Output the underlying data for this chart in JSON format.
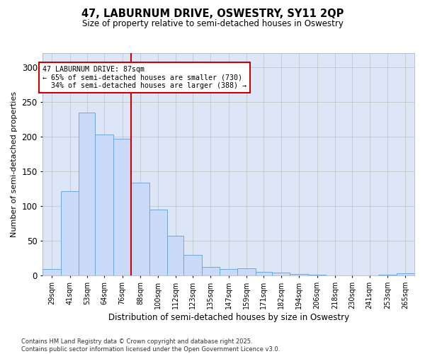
{
  "title": "47, LABURNUM DRIVE, OSWESTRY, SY11 2QP",
  "subtitle": "Size of property relative to semi-detached houses in Oswestry",
  "xlabel": "Distribution of semi-detached houses by size in Oswestry",
  "ylabel": "Number of semi-detached properties",
  "property_label": "47 LABURNUM DRIVE: 87sqm",
  "smaller_pct": 65,
  "smaller_count": 730,
  "larger_pct": 34,
  "larger_count": 388,
  "bin_labels": [
    "29sqm",
    "41sqm",
    "53sqm",
    "64sqm",
    "76sqm",
    "88sqm",
    "100sqm",
    "112sqm",
    "123sqm",
    "135sqm",
    "147sqm",
    "159sqm",
    "171sqm",
    "182sqm",
    "194sqm",
    "206sqm",
    "218sqm",
    "230sqm",
    "241sqm",
    "253sqm",
    "265sqm"
  ],
  "bin_edges": [
    29,
    41,
    53,
    64,
    76,
    88,
    100,
    112,
    123,
    135,
    147,
    159,
    171,
    182,
    194,
    206,
    218,
    230,
    241,
    253,
    265,
    277
  ],
  "bar_values": [
    10,
    122,
    235,
    203,
    197,
    134,
    95,
    57,
    30,
    13,
    10,
    11,
    6,
    5,
    2,
    1,
    0,
    0,
    0,
    1,
    3
  ],
  "bar_color": "#c9daf8",
  "bar_edge_color": "#6fa8dc",
  "vline_x": 88,
  "vline_color": "#cc0000",
  "annotation_box_color": "#cc0000",
  "grid_color": "#c0c0c0",
  "background_color": "#dce6f7",
  "footer_text": "Contains HM Land Registry data © Crown copyright and database right 2025.\nContains public sector information licensed under the Open Government Licence v3.0.",
  "ylim": [
    0,
    320
  ],
  "yticks": [
    0,
    50,
    100,
    150,
    200,
    250,
    300
  ]
}
